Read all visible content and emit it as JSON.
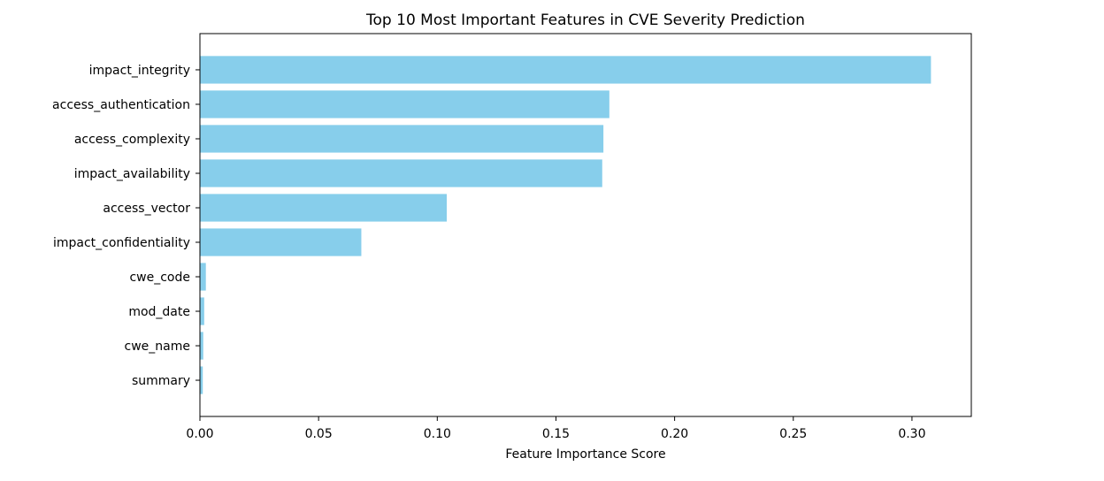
{
  "chart_data": {
    "type": "bar",
    "orientation": "horizontal",
    "title": "Top 10 Most Important Features in CVE Severity Prediction",
    "xlabel": "Feature Importance Score",
    "ylabel": "",
    "categories": [
      "impact_integrity",
      "access_authentication",
      "access_complexity",
      "impact_availability",
      "access_vector",
      "impact_confidentiality",
      "cwe_code",
      "mod_date",
      "cwe_name",
      "summary"
    ],
    "values": [
      0.308,
      0.1725,
      0.17,
      0.1695,
      0.104,
      0.068,
      0.0025,
      0.0018,
      0.0014,
      0.0012
    ],
    "xlim": [
      0,
      0.325
    ],
    "xticks": [
      0.0,
      0.05,
      0.1,
      0.15,
      0.2,
      0.25,
      0.3
    ],
    "xtick_labels": [
      "0.00",
      "0.05",
      "0.10",
      "0.15",
      "0.20",
      "0.25",
      "0.30"
    ],
    "grid": false,
    "legend": "none",
    "bar_color": "#87ceeb"
  }
}
